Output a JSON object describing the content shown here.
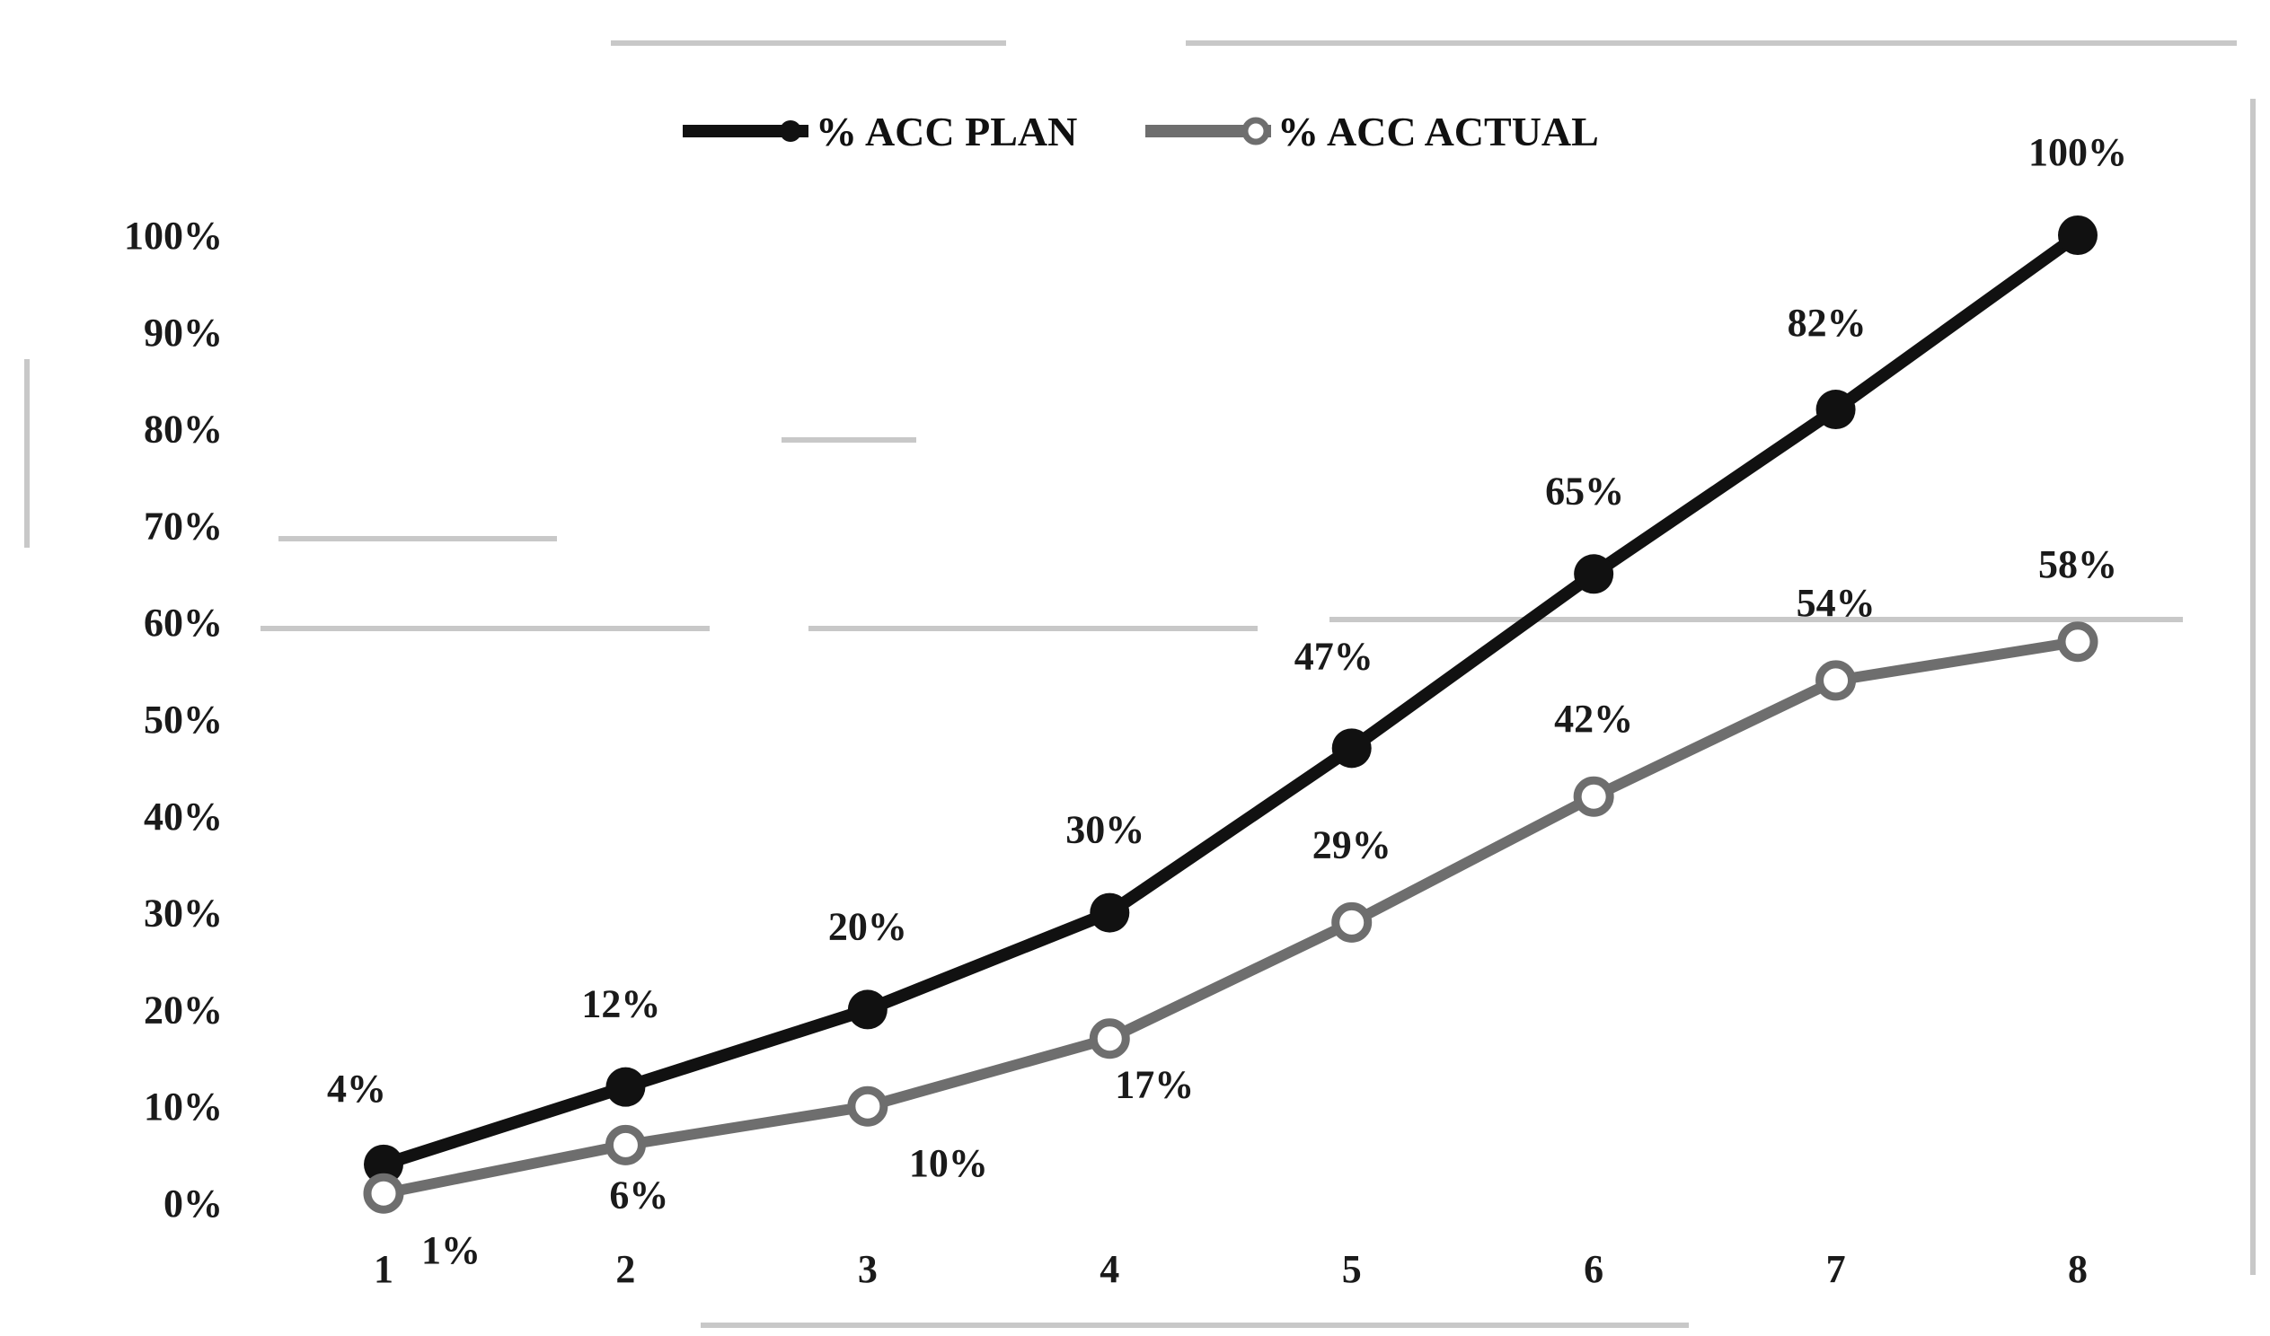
{
  "chart_data": {
    "type": "line",
    "x": [
      1,
      2,
      3,
      4,
      5,
      6,
      7,
      8
    ],
    "ylim": [
      0,
      100
    ],
    "y_ticks": [
      "0%",
      "10%",
      "20%",
      "30%",
      "40%",
      "50%",
      "60%",
      "70%",
      "80%",
      "90%",
      "100%"
    ],
    "x_ticks": [
      "1",
      "2",
      "3",
      "4",
      "5",
      "6",
      "7",
      "8"
    ],
    "legend_position": "top",
    "grid": false,
    "series": [
      {
        "name": "% ACC PLAN",
        "color": "#111111",
        "marker": "filled-circle",
        "values": [
          4,
          12,
          20,
          30,
          47,
          65,
          82,
          100
        ],
        "labels": [
          "4%",
          "12%",
          "20%",
          "30%",
          "47%",
          "65%",
          "82%",
          "100%"
        ]
      },
      {
        "name": "% ACC ACTUAL",
        "color": "#6e6e6e",
        "marker": "hollow-circle",
        "values": [
          1,
          6,
          10,
          17,
          29,
          42,
          54,
          58
        ],
        "labels": [
          "1%",
          "6%",
          "10%",
          "17%",
          "29%",
          "42%",
          "54%",
          "58%"
        ]
      }
    ]
  }
}
